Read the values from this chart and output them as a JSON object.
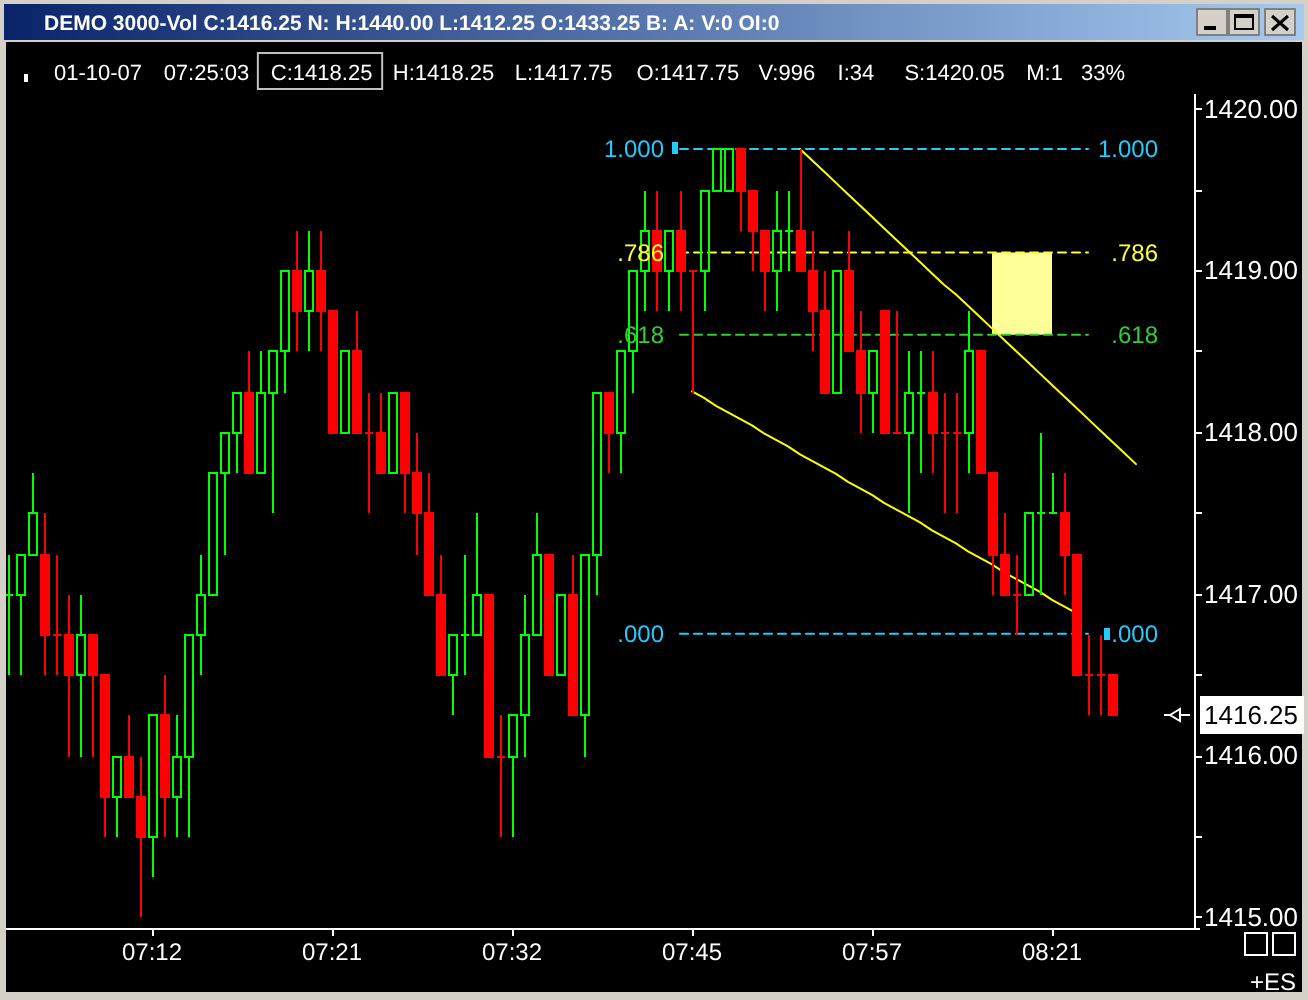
{
  "chart_data": {
    "type": "candlestick",
    "title": "DEMO 3000-Vol C:1416.25 N: H:1440.00 L:1412.25 O:1433.25 B: A: V:0 OI:0",
    "subtitle": "01-10-07  07:25:03  C:1418.25  H:1418.25  L:1417.75  O:1417.75  V:996  I:34  S:1420.05  M:1  33%",
    "categories": [
      null,
      null,
      null,
      null,
      null,
      null,
      null,
      null,
      null,
      null,
      null,
      null,
      "07:12",
      null,
      null,
      null,
      null,
      null,
      null,
      null,
      null,
      null,
      null,
      null,
      null,
      null,
      null,
      "07:21",
      null,
      null,
      null,
      null,
      null,
      null,
      null,
      null,
      null,
      null,
      null,
      null,
      null,
      null,
      "07:32",
      null,
      null,
      null,
      null,
      null,
      null,
      null,
      null,
      null,
      null,
      null,
      null,
      null,
      null,
      "07:45",
      null,
      null,
      null,
      null,
      null,
      null,
      null,
      null,
      null,
      null,
      null,
      null,
      null,
      null,
      "07:57",
      null,
      null,
      null,
      null,
      null,
      null,
      null,
      null,
      null,
      null,
      null,
      null,
      null,
      null,
      "08:21",
      null,
      null,
      null,
      null,
      null,
      null,
      null,
      null,
      null,
      null,
      null
    ],
    "ohlc": [
      [
        1417,
        1417.25,
        1416.5,
        1417
      ],
      [
        1417,
        1417.25,
        1416.5,
        1417.25
      ],
      [
        1417.25,
        1417.75,
        1417.25,
        1417.5
      ],
      [
        1417.25,
        1417.5,
        1416.5,
        1416.75
      ],
      [
        1416.75,
        1417.25,
        1416.5,
        1416.75
      ],
      [
        1416.75,
        1417,
        1416,
        1416.5
      ],
      [
        1416.5,
        1417,
        1416,
        1416.75
      ],
      [
        1416.75,
        1416.75,
        1416,
        1416.5
      ],
      [
        1416.5,
        1416.5,
        1415.5,
        1415.75
      ],
      [
        1415.75,
        1416,
        1415.5,
        1416
      ],
      [
        1416,
        1416.25,
        1415.75,
        1415.75
      ],
      [
        1415.75,
        1416,
        1415,
        1415.5
      ],
      [
        1415.5,
        1416.25,
        1415.25,
        1416.25
      ],
      [
        1416.25,
        1416.5,
        1415.5,
        1415.75
      ],
      [
        1415.75,
        1416.25,
        1415.5,
        1416
      ],
      [
        1416,
        1416.75,
        1415.5,
        1416.75
      ],
      [
        1416.75,
        1417.25,
        1416.5,
        1417
      ],
      [
        1417,
        1417.75,
        1417,
        1417.75
      ],
      [
        1417.75,
        1418,
        1417.25,
        1418
      ],
      [
        1418,
        1418.25,
        1417.75,
        1418.25
      ],
      [
        1418.25,
        1418.5,
        1417.75,
        1417.75
      ],
      [
        1417.75,
        1418.5,
        1417.75,
        1418.25
      ],
      [
        1418.25,
        1418.5,
        1417.5,
        1418.5
      ],
      [
        1418.5,
        1419,
        1418.25,
        1419
      ],
      [
        1419,
        1419.25,
        1418.5,
        1418.75
      ],
      [
        1418.75,
        1419.25,
        1418.5,
        1419
      ],
      [
        1419,
        1419.25,
        1418.5,
        1418.75
      ],
      [
        1418.75,
        1418.75,
        1418,
        1418
      ],
      [
        1418,
        1418.5,
        1418,
        1418.5
      ],
      [
        1418.5,
        1418.75,
        1418,
        1418
      ],
      [
        1418,
        1418.25,
        1417.5,
        1418
      ],
      [
        1418,
        1418.25,
        1417.75,
        1417.75
      ],
      [
        1417.75,
        1418.25,
        1417.75,
        1418.25
      ],
      [
        1418.25,
        1418.25,
        1417.5,
        1417.75
      ],
      [
        1417.75,
        1418,
        1417.25,
        1417.5
      ],
      [
        1417.5,
        1417.75,
        1417,
        1417
      ],
      [
        1417,
        1417.25,
        1416.5,
        1416.5
      ],
      [
        1416.5,
        1416.75,
        1416.25,
        1416.75
      ],
      [
        1416.75,
        1417.25,
        1416.5,
        1416.75
      ],
      [
        1416.75,
        1417.5,
        1416.75,
        1417
      ],
      [
        1417,
        1417,
        1416,
        1416
      ],
      [
        1416,
        1416.25,
        1415.5,
        1416
      ],
      [
        1416,
        1416.25,
        1415.5,
        1416.25
      ],
      [
        1416.25,
        1417,
        1416,
        1416.75
      ],
      [
        1416.75,
        1417.5,
        1416.75,
        1417.25
      ],
      [
        1417.25,
        1417.25,
        1416.5,
        1416.5
      ],
      [
        1416.5,
        1417,
        1416.5,
        1417
      ],
      [
        1417,
        1417.25,
        1416.25,
        1416.25
      ],
      [
        1416.25,
        1417.25,
        1416,
        1417.25
      ],
      [
        1417.25,
        1418.25,
        1417,
        1418.25
      ],
      [
        1418.25,
        1418.25,
        1417.75,
        1418
      ],
      [
        1418,
        1418.5,
        1417.75,
        1418.5
      ],
      [
        1418.5,
        1419,
        1418.25,
        1419
      ],
      [
        1419,
        1419.5,
        1418.75,
        1419.25
      ],
      [
        1419.25,
        1419.5,
        1418.75,
        1419
      ],
      [
        1419,
        1419.25,
        1418.75,
        1419.25
      ],
      [
        1419.25,
        1419.5,
        1418.75,
        1419
      ],
      [
        1419,
        1419,
        1418.25,
        1419
      ],
      [
        1419,
        1419.5,
        1418.75,
        1419.5
      ],
      [
        1419.5,
        1419.75,
        1419.5,
        1419.75
      ],
      [
        1419.5,
        1419.75,
        1419.5,
        1419.75
      ],
      [
        1419.75,
        1419.75,
        1419.25,
        1419.5
      ],
      [
        1419.5,
        1419.5,
        1419,
        1419.25
      ],
      [
        1419.25,
        1419.25,
        1418.75,
        1419
      ],
      [
        1419,
        1419.5,
        1418.75,
        1419.25
      ],
      [
        1419.25,
        1419.5,
        1419,
        1419.25
      ],
      [
        1419.25,
        1419.75,
        1419,
        1419
      ],
      [
        1419,
        1419.25,
        1418.5,
        1418.75
      ],
      [
        1418.75,
        1419,
        1418.25,
        1418.25
      ],
      [
        1418.25,
        1419,
        1418.25,
        1419
      ],
      [
        1419,
        1419.25,
        1418.5,
        1418.5
      ],
      [
        1418.5,
        1418.75,
        1418,
        1418.25
      ],
      [
        1418.25,
        1418.5,
        1418,
        1418.5
      ],
      [
        1418.75,
        1418.75,
        1418,
        1418
      ],
      [
        1418,
        1418.75,
        1418,
        1418
      ],
      [
        1418,
        1418.5,
        1417.5,
        1418.25
      ],
      [
        1418.25,
        1418.5,
        1417.75,
        1418.25
      ],
      [
        1418.25,
        1418.5,
        1417.75,
        1418
      ],
      [
        1418,
        1418.25,
        1417.5,
        1418
      ],
      [
        1418,
        1418.25,
        1417.5,
        1418
      ],
      [
        1418,
        1418.75,
        1417.75,
        1418.5
      ],
      [
        1418.5,
        1418.5,
        1417.75,
        1417.75
      ],
      [
        1417.75,
        1417.75,
        1417,
        1417.25
      ],
      [
        1417.25,
        1417.5,
        1417,
        1417
      ],
      [
        1417,
        1417.25,
        1416.75,
        1417
      ],
      [
        1417,
        1417.5,
        1417,
        1417.5
      ],
      [
        1417.5,
        1418,
        1417,
        1417.5
      ],
      [
        1417.5,
        1417.75,
        1417.5,
        1417.5
      ],
      [
        1417.5,
        1417.75,
        1417,
        1417.25
      ],
      [
        1417.25,
        1417.25,
        1416.5,
        1416.5
      ],
      [
        1416.5,
        1416.75,
        1416.25,
        1416.5
      ],
      [
        1416.5,
        1416.75,
        1416.25,
        1416.5
      ],
      [
        1416.5,
        1416.5,
        1416.25,
        1416.25
      ],
      null,
      null,
      null,
      null,
      null,
      null
    ],
    "colors": [
      "#00ff00",
      "#00ff00",
      "#00ff00",
      "#ff0000",
      "#ff0000",
      "#ff0000",
      "#00ff00",
      "#ff0000",
      "#ff0000",
      "#00ff00",
      "#ff0000",
      "#ff0000",
      "#00ff00",
      "#ff0000",
      "#00ff00",
      "#00ff00",
      "#00ff00",
      "#00ff00",
      "#00ff00",
      "#00ff00",
      "#ff0000",
      "#00ff00",
      "#00ff00",
      "#00ff00",
      "#ff0000",
      "#00ff00",
      "#ff0000",
      "#ff0000",
      "#00ff00",
      "#ff0000",
      "#ff0000",
      "#ff0000",
      "#00ff00",
      "#ff0000",
      "#ff0000",
      "#ff0000",
      "#ff0000",
      "#00ff00",
      "#00ff00",
      "#00ff00",
      "#ff0000",
      "#ff0000",
      "#00ff00",
      "#00ff00",
      "#00ff00",
      "#ff0000",
      "#00ff00",
      "#ff0000",
      "#00ff00",
      "#00ff00",
      "#ff0000",
      "#00ff00",
      "#00ff00",
      "#00ff00",
      "#ff0000",
      "#00ff00",
      "#ff0000",
      "#ff0000",
      "#00ff00",
      "#00ff00",
      "#00ff00",
      "#ff0000",
      "#ff0000",
      "#ff0000",
      "#00ff00",
      "#00ff00",
      "#ff0000",
      "#ff0000",
      "#ff0000",
      "#00ff00",
      "#ff0000",
      "#ff0000",
      "#00ff00",
      "#ff0000",
      "#ff0000",
      "#00ff00",
      "#00ff00",
      "#ff0000",
      "#ff0000",
      "#ff0000",
      "#00ff00",
      "#ff0000",
      "#ff0000",
      "#ff0000",
      "#ff0000",
      "#00ff00",
      "#00ff00",
      "#00ff00",
      "#ff0000",
      "#ff0000",
      "#ff0000",
      "#ff0000",
      "#ff0000",
      null,
      null,
      null,
      null,
      null,
      null
    ],
    "ylim": [
      1414.93,
      1420.09
    ],
    "yticks": [
      {
        "value": 1415,
        "label": "1415.00"
      },
      {
        "value": 1415.5,
        "label": null
      },
      {
        "value": 1416,
        "label": "1416.00"
      },
      {
        "value": 1416.5,
        "label": null
      },
      {
        "value": 1417,
        "label": "1417.00"
      },
      {
        "value": 1417.5,
        "label": null
      },
      {
        "value": 1418,
        "label": "1418.00"
      },
      {
        "value": 1418.5,
        "label": null
      },
      {
        "value": 1419,
        "label": "1419.00"
      },
      {
        "value": 1419.5,
        "label": null
      },
      {
        "value": 1420,
        "label": "1420.00"
      }
    ],
    "series": [
      {
        "type": "line",
        "name": "1.000",
        "color": "#22ccff",
        "line_style": "dashed",
        "values": [
          null,
          null,
          null,
          null,
          null,
          null,
          null,
          null,
          null,
          null,
          null,
          null,
          null,
          null,
          null,
          null,
          null,
          null,
          null,
          null,
          null,
          null,
          null,
          null,
          null,
          null,
          null,
          null,
          null,
          null,
          null,
          null,
          null,
          null,
          null,
          null,
          null,
          null,
          null,
          null,
          null,
          null,
          null,
          null,
          null,
          null,
          null,
          null,
          null,
          null,
          null,
          null,
          null,
          null,
          null,
          null,
          1419.75,
          1419.75,
          1419.75,
          1419.75,
          1419.75,
          1419.75,
          1419.75,
          1419.75,
          1419.75,
          1419.75,
          1419.75,
          1419.75,
          1419.75,
          1419.75,
          1419.75,
          1419.75,
          1419.75,
          1419.75,
          1419.75,
          1419.75,
          1419.75,
          1419.75,
          1419.75,
          1419.75,
          1419.75,
          1419.75,
          1419.75,
          1419.75,
          1419.75,
          1419.75,
          1419.75,
          1419.75,
          1419.75,
          1419.75,
          1419.75,
          null,
          null,
          null,
          null,
          null,
          null,
          null,
          null
        ]
      },
      {
        "type": "line",
        "name": ".786",
        "color": "#ffff33",
        "line_style": "dashed",
        "values": [
          null,
          null,
          null,
          null,
          null,
          null,
          null,
          null,
          null,
          null,
          null,
          null,
          null,
          null,
          null,
          null,
          null,
          null,
          null,
          null,
          null,
          null,
          null,
          null,
          null,
          null,
          null,
          null,
          null,
          null,
          null,
          null,
          null,
          null,
          null,
          null,
          null,
          null,
          null,
          null,
          null,
          null,
          null,
          null,
          null,
          null,
          null,
          null,
          null,
          null,
          null,
          null,
          null,
          null,
          null,
          null,
          1419.11,
          1419.11,
          1419.11,
          1419.11,
          1419.11,
          1419.11,
          1419.11,
          1419.11,
          1419.11,
          1419.11,
          1419.11,
          1419.11,
          1419.11,
          1419.11,
          1419.11,
          1419.11,
          1419.11,
          1419.11,
          1419.11,
          1419.11,
          1419.11,
          1419.11,
          1419.11,
          1419.11,
          1419.11,
          1419.11,
          1419.11,
          1419.11,
          1419.11,
          1419.11,
          1419.11,
          1419.11,
          1419.11,
          1419.11,
          1419.11,
          null,
          null,
          null,
          null,
          null,
          null,
          null,
          null
        ],
        "upper": [
          null,
          null,
          null,
          null,
          null,
          null,
          null,
          null,
          null,
          null,
          null,
          null,
          null,
          null,
          null,
          null,
          null,
          null,
          null,
          null,
          null,
          null,
          null,
          null,
          null,
          null,
          null,
          null,
          null,
          null,
          null,
          null,
          null,
          null,
          null,
          null,
          null,
          null,
          null,
          null,
          null,
          null,
          null,
          null,
          null,
          null,
          null,
          null,
          null,
          null,
          null,
          null,
          null,
          null,
          null,
          null,
          null,
          null,
          null,
          null,
          null,
          null,
          null,
          null,
          null,
          null,
          null,
          null,
          null,
          null,
          null,
          null,
          null,
          null,
          null,
          null,
          null,
          null,
          null,
          null,
          null,
          null,
          1419.11,
          1419.11,
          1419.11,
          1419.11,
          1419.11,
          1419.11,
          null,
          null,
          null,
          null,
          null,
          null,
          null,
          null,
          null,
          null,
          null
        ],
        "lower": [
          null,
          null,
          null,
          null,
          null,
          null,
          null,
          null,
          null,
          null,
          null,
          null,
          null,
          null,
          null,
          null,
          null,
          null,
          null,
          null,
          null,
          null,
          null,
          null,
          null,
          null,
          null,
          null,
          null,
          null,
          null,
          null,
          null,
          null,
          null,
          null,
          null,
          null,
          null,
          null,
          null,
          null,
          null,
          null,
          null,
          null,
          null,
          null,
          null,
          null,
          null,
          null,
          null,
          null,
          null,
          null,
          null,
          null,
          null,
          null,
          null,
          null,
          null,
          null,
          null,
          null,
          null,
          null,
          null,
          null,
          null,
          null,
          null,
          null,
          null,
          null,
          null,
          null,
          null,
          null,
          null,
          null,
          1418.6,
          1418.6,
          1418.6,
          1418.6,
          1418.6,
          1418.6,
          null,
          null,
          null,
          null,
          null,
          null,
          null,
          null,
          null,
          null,
          null
        ]
      },
      {
        "type": "line",
        "name": ".618",
        "color": "#33cc33",
        "line_style": "dashed",
        "values": [
          null,
          null,
          null,
          null,
          null,
          null,
          null,
          null,
          null,
          null,
          null,
          null,
          null,
          null,
          null,
          null,
          null,
          null,
          null,
          null,
          null,
          null,
          null,
          null,
          null,
          null,
          null,
          null,
          null,
          null,
          null,
          null,
          null,
          null,
          null,
          null,
          null,
          null,
          null,
          null,
          null,
          null,
          null,
          null,
          null,
          null,
          null,
          null,
          null,
          null,
          null,
          null,
          null,
          null,
          null,
          null,
          1418.6,
          1418.6,
          1418.6,
          1418.6,
          1418.6,
          1418.6,
          1418.6,
          1418.6,
          1418.6,
          1418.6,
          1418.6,
          1418.6,
          1418.6,
          1418.6,
          1418.6,
          1418.6,
          1418.6,
          1418.6,
          1418.6,
          1418.6,
          1418.6,
          1418.6,
          1418.6,
          1418.6,
          1418.6,
          1418.6,
          1418.6,
          1418.6,
          1418.6,
          1418.6,
          1418.6,
          1418.6,
          1418.6,
          1418.6,
          1418.6,
          null,
          null,
          null,
          null,
          null,
          null,
          null,
          null
        ]
      },
      {
        "type": "line",
        "name": ".000",
        "color": "#22ccff",
        "line_style": "dashed",
        "values": [
          null,
          null,
          null,
          null,
          null,
          null,
          null,
          null,
          null,
          null,
          null,
          null,
          null,
          null,
          null,
          null,
          null,
          null,
          null,
          null,
          null,
          null,
          null,
          null,
          null,
          null,
          null,
          null,
          null,
          null,
          null,
          null,
          null,
          null,
          null,
          null,
          null,
          null,
          null,
          null,
          null,
          null,
          null,
          null,
          null,
          null,
          null,
          null,
          null,
          null,
          null,
          null,
          null,
          null,
          null,
          null,
          1416.75,
          1416.75,
          1416.75,
          1416.75,
          1416.75,
          1416.75,
          1416.75,
          1416.75,
          1416.75,
          1416.75,
          1416.75,
          1416.75,
          1416.75,
          1416.75,
          1416.75,
          1416.75,
          1416.75,
          1416.75,
          1416.75,
          1416.75,
          1416.75,
          1416.75,
          1416.75,
          1416.75,
          1416.75,
          1416.75,
          1416.75,
          1416.75,
          1416.75,
          1416.75,
          1416.75,
          1416.75,
          1416.75,
          1416.75,
          1416.75,
          null,
          null,
          null,
          null,
          null,
          null,
          null,
          null
        ]
      },
      {
        "type": "line",
        "color": "#ffff00",
        "line_style": "solid",
        "values": [
          null,
          null,
          null,
          null,
          null,
          null,
          null,
          null,
          null,
          null,
          null,
          null,
          null,
          null,
          null,
          null,
          null,
          null,
          null,
          null,
          null,
          null,
          null,
          null,
          null,
          null,
          null,
          null,
          null,
          null,
          null,
          null,
          null,
          null,
          null,
          null,
          null,
          null,
          null,
          null,
          null,
          null,
          null,
          null,
          null,
          null,
          null,
          null,
          null,
          null,
          null,
          null,
          null,
          null,
          null,
          null,
          null,
          null,
          null,
          null,
          null,
          null,
          null,
          null,
          null,
          null,
          1419.75,
          1419.68,
          1419.61,
          1419.54,
          1419.47,
          1419.4,
          1419.33,
          1419.26,
          1419.19,
          1419.12,
          1419.05,
          1418.98,
          1418.91,
          1418.85,
          1418.78,
          1418.71,
          1418.64,
          1418.57,
          1418.5,
          1418.43,
          1418.36,
          1418.29,
          1418.22,
          1418.15,
          1418.08,
          1418.01,
          1417.94,
          1417.87,
          1417.8,
          null,
          null,
          null,
          null
        ]
      },
      {
        "type": "line",
        "color": "#ffff00",
        "line_style": "solid",
        "values": [
          null,
          null,
          null,
          null,
          null,
          null,
          null,
          null,
          null,
          null,
          null,
          null,
          null,
          null,
          null,
          null,
          null,
          null,
          null,
          null,
          null,
          null,
          null,
          null,
          null,
          null,
          null,
          null,
          null,
          null,
          null,
          null,
          null,
          null,
          null,
          null,
          null,
          null,
          null,
          null,
          null,
          null,
          null,
          null,
          null,
          null,
          null,
          null,
          null,
          null,
          null,
          null,
          null,
          null,
          null,
          null,
          null,
          1418.25,
          1418.21,
          1418.16,
          1418.12,
          1418.08,
          1418.04,
          1417.99,
          1417.95,
          1417.91,
          1417.86,
          1417.82,
          1417.78,
          1417.74,
          1417.69,
          1417.65,
          1417.61,
          1417.56,
          1417.52,
          1417.48,
          1417.44,
          1417.39,
          1417.35,
          1417.31,
          1417.26,
          1417.22,
          1417.18,
          1417.13,
          1417.09,
          1417.05,
          1417.01,
          1416.96,
          1416.92,
          1416.88,
          null,
          null,
          null,
          null,
          null,
          null,
          null,
          null,
          null
        ]
      }
    ],
    "annotations": [
      "1416.25",
      "+ES"
    ]
  }
}
